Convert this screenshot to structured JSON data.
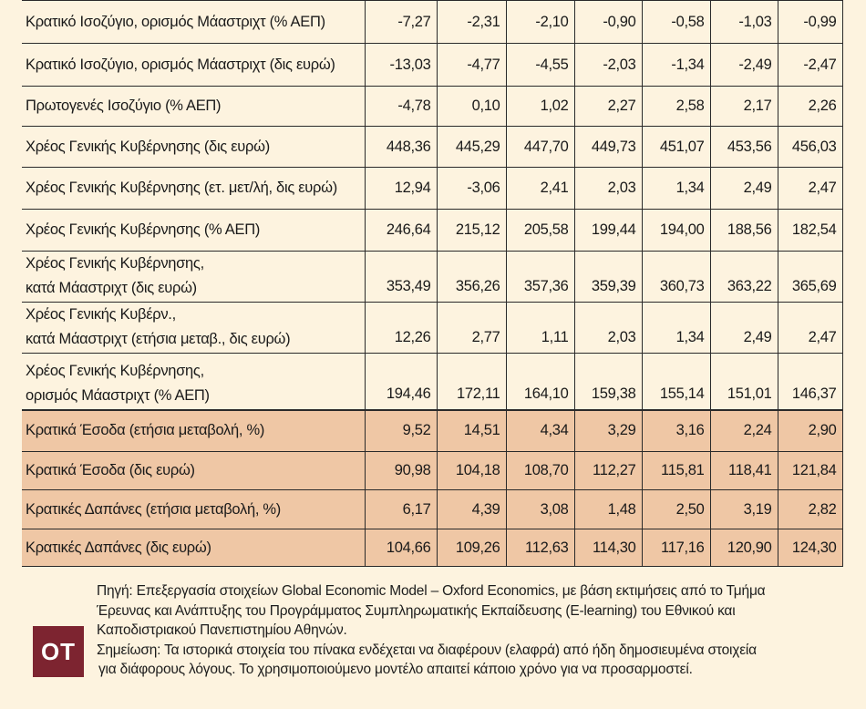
{
  "table": {
    "rows": [
      {
        "label": [
          "Κρατικό Ισοζύγιο, ορισμός Μάαστριχτ (% ΑΕΠ)"
        ],
        "values": [
          "-7,27",
          "-2,31",
          "-2,10",
          "-0,90",
          "-0,58",
          "-1,03",
          "-0,99"
        ]
      },
      {
        "label": [
          "Κρατικό Ισοζύγιο, ορισμός Μάαστριχτ (δις ευρώ)"
        ],
        "values": [
          "-13,03",
          "-4,77",
          "-4,55",
          "-2,03",
          "-1,34",
          "-2,49",
          "-2,47"
        ]
      },
      {
        "label": [
          "Πρωτογενές Ισοζύγιο (% ΑΕΠ)"
        ],
        "values": [
          "-4,78",
          "0,10",
          "1,02",
          "2,27",
          "2,58",
          "2,17",
          "2,26"
        ]
      },
      {
        "label": [
          "Χρέος Γενικής Κυβέρνησης (δις ευρώ)"
        ],
        "values": [
          "448,36",
          "445,29",
          "447,70",
          "449,73",
          "451,07",
          "453,56",
          "456,03"
        ]
      },
      {
        "label": [
          "Χρέος Γενικής Κυβέρνησης (ετ. μετ/λή, δις ευρώ)"
        ],
        "values": [
          "12,94",
          "-3,06",
          "2,41",
          "2,03",
          "1,34",
          "2,49",
          "2,47"
        ]
      },
      {
        "label": [
          "Χρέος Γενικής Κυβέρνησης (% ΑΕΠ)"
        ],
        "values": [
          "246,64",
          "215,12",
          "205,58",
          "199,44",
          "194,00",
          "188,56",
          "182,54"
        ]
      },
      {
        "label": [
          "Χρέος Γενικής Κυβέρνησης,",
          "κατά Μάαστριχτ (δις ευρώ)"
        ],
        "values": [
          "353,49",
          "356,26",
          "357,36",
          "359,39",
          "360,73",
          "363,22",
          "365,69"
        ]
      },
      {
        "label": [
          "Χρέος Γενικής Κυβέρν.,",
          "κατά Μάαστριχτ (ετήσια μεταβ., δις ευρώ)"
        ],
        "values": [
          "12,26",
          "2,77",
          "1,11",
          "2,03",
          "1,34",
          "2,49",
          "2,47"
        ]
      },
      {
        "label": [
          "Χρέος Γενικής Κυβέρνησης,",
          "ορισμός Μάαστριχτ (% ΑΕΠ)"
        ],
        "values": [
          "194,46",
          "172,11",
          "164,10",
          "159,38",
          "155,14",
          "151,01",
          "146,37"
        ]
      },
      {
        "label": [
          "Κρατικά Έσοδα (ετήσια μεταβολή, %)"
        ],
        "values": [
          "9,52",
          "14,51",
          "4,34",
          "3,29",
          "3,16",
          "2,24",
          "2,90"
        ]
      },
      {
        "label": [
          "Κρατικά Έσοδα (δις ευρώ)"
        ],
        "values": [
          "90,98",
          "104,18",
          "108,70",
          "112,27",
          "115,81",
          "118,41",
          "121,84"
        ]
      },
      {
        "label": [
          "Κρατικές Δαπάνες (ετήσια μεταβολή, %)"
        ],
        "values": [
          "6,17",
          "4,39",
          "3,08",
          "1,48",
          "2,50",
          "3,19",
          "2,82"
        ]
      },
      {
        "label": [
          "Κρατικές Δαπάνες (δις ευρώ)"
        ],
        "values": [
          "104,66",
          "109,26",
          "112,63",
          "114,30",
          "117,16",
          "120,90",
          "124,30"
        ]
      }
    ]
  },
  "notes": {
    "source_lines": [
      "Πηγή: Επεξεργασία στοιχείων Global Economic Model – Oxford Economics, με βάση εκτιμήσεις από το Τμήμα",
      "Έρευνας και Ανάπτυξης του Προγράμματος Συμπληρωματικής Εκπαίδευσης (E-learning) του Εθνικού και",
      "Καποδιστριακού Πανεπιστημίου Αθηνών."
    ],
    "note_lines": [
      "Σημείωση: Τα ιστορικά στοιχεία του πίνακα ενδέχεται να διαφέρουν (ελαφρά) από ήδη δημοσιευμένα στοιχεία",
      " για διάφορους λόγους.  Το χρησιμοποιούμενο μοντέλο απαιτεί κάποιο χρόνο για να προσαρμοστεί."
    ]
  },
  "logo": {
    "text": "ΟΤ",
    "color": "#7d2430"
  },
  "colors": {
    "background": "#fdf3df",
    "highlight_rows": "#efc7a5"
  }
}
